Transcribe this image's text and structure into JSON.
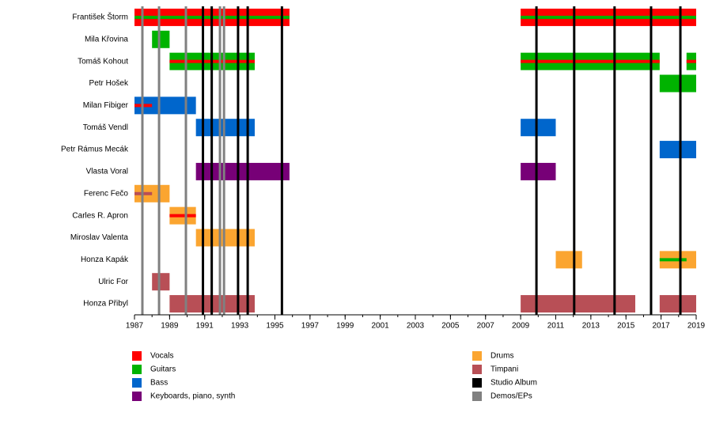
{
  "chart_data": {
    "type": "timeline",
    "xlim": [
      1987,
      2019
    ],
    "xticks": [
      1987,
      1989,
      1991,
      1993,
      1995,
      1997,
      1999,
      2001,
      2003,
      2005,
      2007,
      2009,
      2011,
      2013,
      2015,
      2017,
      2019
    ],
    "roles": [
      {
        "name": "Vocals",
        "color": "#ff0000"
      },
      {
        "name": "Guitars",
        "color": "#00b300"
      },
      {
        "name": "Bass",
        "color": "#0066cc"
      },
      {
        "name": "Keyboards, piano, synth",
        "color": "#770077"
      },
      {
        "name": "Drums",
        "color": "#fba530"
      },
      {
        "name": "Timpani",
        "color": "#b84f56"
      }
    ],
    "events": [
      {
        "name": "Studio Album",
        "color": "#000000",
        "x": [
          1990.9,
          1991.4,
          1992.9,
          1993.45,
          1995.4,
          2009.9,
          2012.05,
          2014.35,
          2016.43,
          2018.1
        ]
      },
      {
        "name": "Demos/EPs",
        "color": "#808080",
        "x": [
          1987.45,
          1988.4,
          1989.93,
          1991.87,
          1992.1
        ]
      }
    ],
    "rows": [
      {
        "name": "František Štorm",
        "bars": [
          {
            "role": "Vocals",
            "start": 1987,
            "end": 1995.83
          },
          {
            "role": "Vocals",
            "start": 2009,
            "end": 2019
          }
        ],
        "stripes": [
          {
            "role": "Guitars",
            "start": 1987,
            "end": 1995.83
          },
          {
            "role": "Guitars",
            "start": 2009,
            "end": 2019
          }
        ]
      },
      {
        "name": "Mila Křovina",
        "bars": [
          {
            "role": "Guitars",
            "start": 1988,
            "end": 1989
          }
        ],
        "stripes": []
      },
      {
        "name": "Tomáš Kohout",
        "bars": [
          {
            "role": "Guitars",
            "start": 1989,
            "end": 1993.85
          },
          {
            "role": "Guitars",
            "start": 2009,
            "end": 2016.92
          },
          {
            "role": "Guitars",
            "start": 2018.45,
            "end": 2019
          }
        ],
        "stripes": [
          {
            "role": "Vocals",
            "start": 1989,
            "end": 1993.85
          },
          {
            "role": "Vocals",
            "start": 2009,
            "end": 2016.92
          },
          {
            "role": "Vocals",
            "start": 2018.45,
            "end": 2019
          }
        ]
      },
      {
        "name": "Petr Hošek",
        "bars": [
          {
            "role": "Guitars",
            "start": 2016.92,
            "end": 2019
          }
        ],
        "stripes": []
      },
      {
        "name": "Milan Fibiger",
        "bars": [
          {
            "role": "Bass",
            "start": 1987,
            "end": 1990.5
          }
        ],
        "stripes": [
          {
            "role": "Vocals",
            "start": 1987,
            "end": 1988
          }
        ]
      },
      {
        "name": "Tomáš Vendl",
        "bars": [
          {
            "role": "Bass",
            "start": 1990.5,
            "end": 1993.85
          },
          {
            "role": "Bass",
            "start": 2009,
            "end": 2011
          }
        ],
        "stripes": []
      },
      {
        "name": "Petr Rámus Mecák",
        "bars": [
          {
            "role": "Bass",
            "start": 2016.92,
            "end": 2019
          }
        ],
        "stripes": []
      },
      {
        "name": "Vlasta Voral",
        "bars": [
          {
            "role": "Keyboards, piano, synth",
            "start": 1990.5,
            "end": 1995.83
          },
          {
            "role": "Keyboards, piano, synth",
            "start": 2009,
            "end": 2011
          }
        ],
        "stripes": []
      },
      {
        "name": "Ferenc Fečo",
        "bars": [
          {
            "role": "Drums",
            "start": 1987,
            "end": 1989
          }
        ],
        "stripes": [
          {
            "role": "Timpani",
            "start": 1987,
            "end": 1988
          }
        ]
      },
      {
        "name": "Carles R. Apron",
        "bars": [
          {
            "role": "Drums",
            "start": 1989,
            "end": 1990.5
          }
        ],
        "stripes": [
          {
            "role": "Vocals",
            "start": 1989,
            "end": 1990.5
          }
        ]
      },
      {
        "name": "Miroslav Valenta",
        "bars": [
          {
            "role": "Drums",
            "start": 1990.5,
            "end": 1993.85
          }
        ],
        "stripes": []
      },
      {
        "name": "Honza Kapák",
        "bars": [
          {
            "role": "Drums",
            "start": 2011,
            "end": 2012.5
          },
          {
            "role": "Drums",
            "start": 2016.92,
            "end": 2019
          }
        ],
        "stripes": [
          {
            "role": "Guitars",
            "start": 2016.92,
            "end": 2018.45
          }
        ]
      },
      {
        "name": "Ulric For",
        "bars": [
          {
            "role": "Timpani",
            "start": 1988,
            "end": 1989
          }
        ],
        "stripes": []
      },
      {
        "name": "Honza Přibyl",
        "bars": [
          {
            "role": "Timpani",
            "start": 1989,
            "end": 1993.85
          },
          {
            "role": "Timpani",
            "start": 2009,
            "end": 2015.53
          },
          {
            "role": "Timpani",
            "start": 2016.92,
            "end": 2019
          }
        ],
        "stripes": []
      }
    ]
  }
}
